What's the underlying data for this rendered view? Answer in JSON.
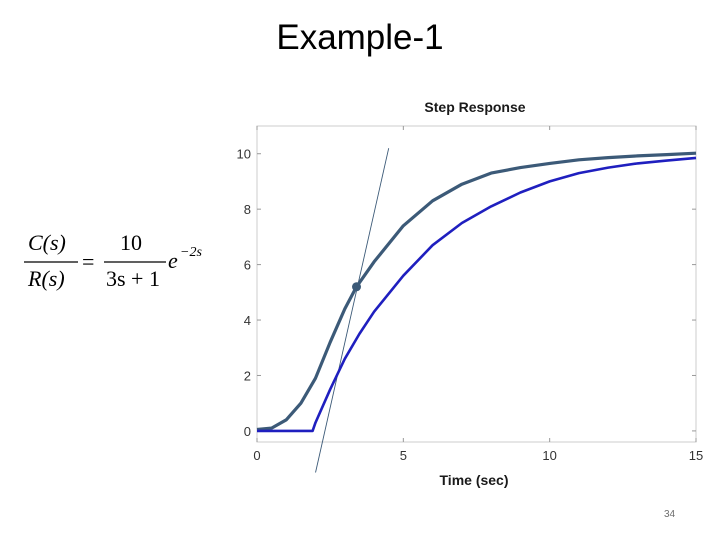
{
  "slide": {
    "title": "Example-1",
    "page_number": "34"
  },
  "formula": {
    "numerator": "C(s)",
    "denominator": "R(s)",
    "equals": "=",
    "tf_numerator": "10",
    "tf_denominator": "3s + 1",
    "exp_base": "e",
    "exp_power": "−2s"
  },
  "chart_data": {
    "type": "line",
    "title": "Step Response",
    "xlabel": "Time (sec)",
    "ylabel": "",
    "xlim": [
      0,
      15
    ],
    "ylim": [
      -0.4,
      11
    ],
    "xticks": [
      0,
      5,
      10,
      15
    ],
    "yticks": [
      0,
      2,
      4,
      6,
      8,
      10
    ],
    "grid": false,
    "series": [
      {
        "color": "#3c5a78",
        "x": [
          0,
          0.5,
          1.0,
          1.5,
          2.0,
          2.5,
          3.0,
          3.4,
          4.0,
          5.0,
          6.0,
          7.0,
          8.0,
          9.0,
          10.0,
          11.0,
          12.0,
          13.0,
          14.0,
          15.0
        ],
        "y": [
          0.05,
          0.1,
          0.4,
          1.0,
          1.9,
          3.2,
          4.4,
          5.2,
          6.1,
          7.4,
          8.3,
          8.9,
          9.3,
          9.5,
          9.65,
          9.78,
          9.86,
          9.92,
          9.97,
          10.02
        ]
      },
      {
        "color": "#1f1fbf",
        "x": [
          0,
          1.0,
          1.9,
          2.0,
          2.5,
          3.0,
          3.5,
          4.0,
          5.0,
          6.0,
          7.0,
          8.0,
          9.0,
          10.0,
          11.0,
          12.0,
          13.0,
          14.0,
          15.0
        ],
        "y": [
          0,
          0,
          0,
          0.3,
          1.5,
          2.6,
          3.5,
          4.3,
          5.6,
          6.7,
          7.5,
          8.1,
          8.6,
          9.0,
          9.3,
          9.5,
          9.65,
          9.75,
          9.85
        ]
      }
    ],
    "annotations": [
      {
        "type": "tangent",
        "color": "#3c5a78",
        "x": [
          2.0,
          4.5
        ],
        "y": [
          -1.5,
          10.2
        ]
      },
      {
        "type": "marker",
        "color": "#3c5a78",
        "x": 3.4,
        "y": 5.2
      }
    ]
  }
}
